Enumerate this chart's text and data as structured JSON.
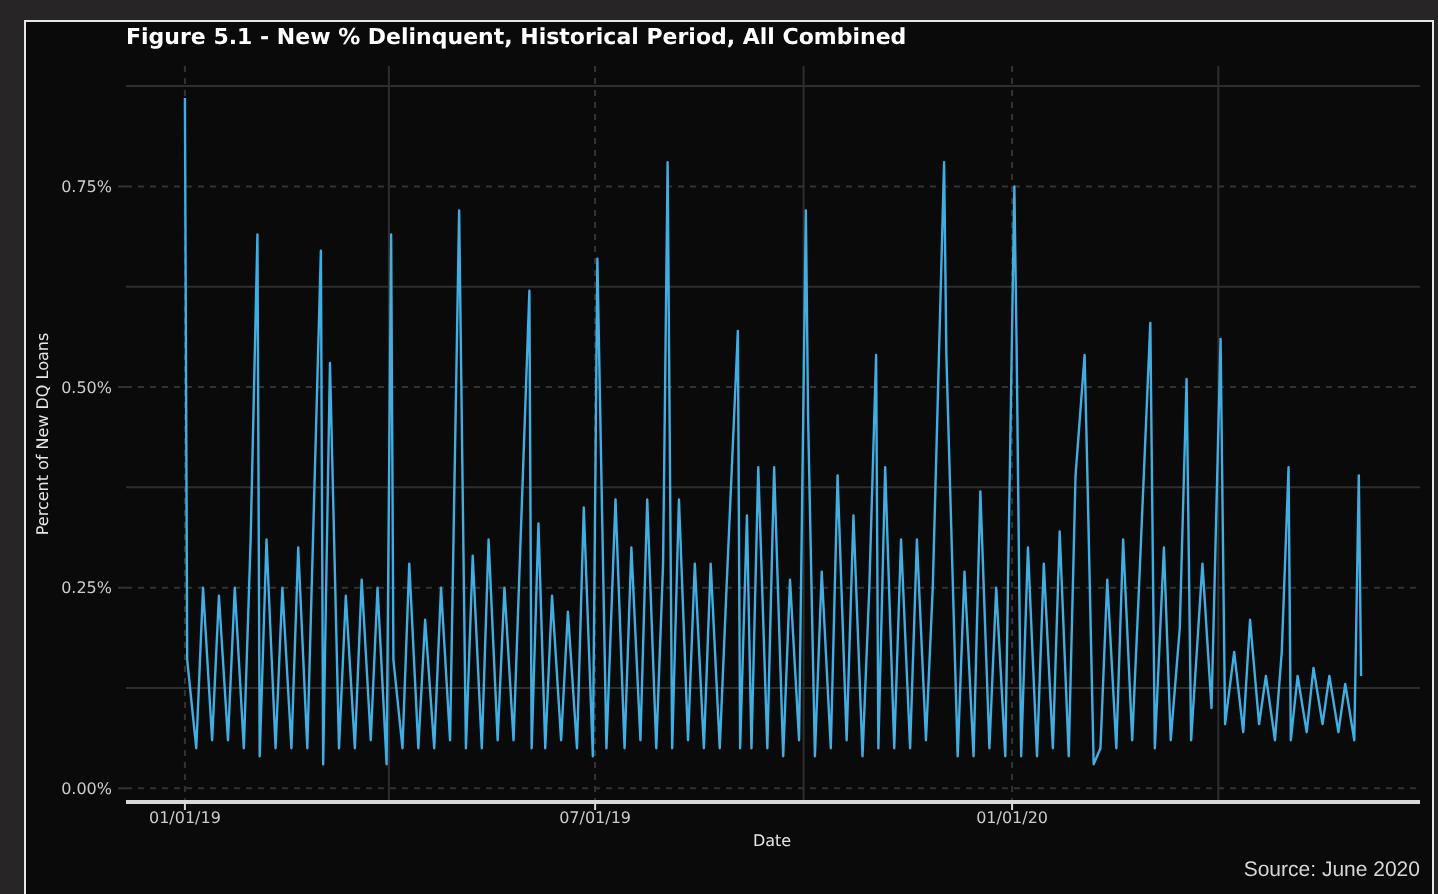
{
  "chart_data": {
    "type": "line",
    "title": "Figure 5.1 - New % Delinquent, Historical Period, All Combined",
    "xlabel": "Date",
    "ylabel": "Percent of New DQ Loans",
    "annotations": [
      "Source: June 2020"
    ],
    "x": [
      "2019-01-01",
      "2019-01-02",
      "2019-01-06",
      "2019-01-09",
      "2019-01-13",
      "2019-01-16",
      "2019-01-20",
      "2019-01-23",
      "2019-01-27",
      "2019-01-30",
      "2019-02-02",
      "2019-02-03",
      "2019-02-06",
      "2019-02-10",
      "2019-02-13",
      "2019-02-17",
      "2019-02-20",
      "2019-02-24",
      "2019-03-02",
      "2019-03-03",
      "2019-03-06",
      "2019-03-10",
      "2019-03-13",
      "2019-03-17",
      "2019-03-20",
      "2019-03-24",
      "2019-03-27",
      "2019-03-31",
      "2019-04-02",
      "2019-04-03",
      "2019-04-07",
      "2019-04-10",
      "2019-04-14",
      "2019-04-17",
      "2019-04-21",
      "2019-04-24",
      "2019-04-28",
      "2019-05-02",
      "2019-05-05",
      "2019-05-08",
      "2019-05-12",
      "2019-05-15",
      "2019-05-19",
      "2019-05-22",
      "2019-05-26",
      "2019-05-29",
      "2019-06-02",
      "2019-06-03",
      "2019-06-06",
      "2019-06-09",
      "2019-06-12",
      "2019-06-16",
      "2019-06-19",
      "2019-06-23",
      "2019-06-26",
      "2019-06-30",
      "2019-07-02",
      "2019-07-06",
      "2019-07-10",
      "2019-07-14",
      "2019-07-17",
      "2019-07-21",
      "2019-07-24",
      "2019-07-28",
      "2019-07-31",
      "2019-08-02",
      "2019-08-04",
      "2019-08-07",
      "2019-08-11",
      "2019-08-14",
      "2019-08-18",
      "2019-08-21",
      "2019-08-25",
      "2019-08-28",
      "2019-09-02",
      "2019-09-03",
      "2019-09-06",
      "2019-09-08",
      "2019-09-11",
      "2019-09-15",
      "2019-09-18",
      "2019-09-22",
      "2019-09-25",
      "2019-09-29",
      "2019-10-02",
      "2019-10-03",
      "2019-10-06",
      "2019-10-09",
      "2019-10-13",
      "2019-10-16",
      "2019-10-20",
      "2019-10-23",
      "2019-10-27",
      "2019-10-30",
      "2019-11-02",
      "2019-11-03",
      "2019-11-06",
      "2019-11-10",
      "2019-11-13",
      "2019-11-17",
      "2019-11-20",
      "2019-11-24",
      "2019-11-27",
      "2019-12-02",
      "2019-12-03",
      "2019-12-08",
      "2019-12-11",
      "2019-12-15",
      "2019-12-18",
      "2019-12-22",
      "2019-12-25",
      "2019-12-29",
      "2020-01-02",
      "2020-01-03",
      "2020-01-05",
      "2020-01-08",
      "2020-01-12",
      "2020-01-15",
      "2020-01-19",
      "2020-01-22",
      "2020-01-26",
      "2020-01-29",
      "2020-02-02",
      "2020-02-03",
      "2020-02-06",
      "2020-02-09",
      "2020-02-12",
      "2020-02-16",
      "2020-02-19",
      "2020-02-23",
      "2020-02-26",
      "2020-03-02",
      "2020-03-04",
      "2020-03-08",
      "2020-03-11",
      "2020-03-15",
      "2020-03-18",
      "2020-03-20",
      "2020-03-25",
      "2020-03-29",
      "2020-04-02",
      "2020-04-04",
      "2020-04-08",
      "2020-04-12",
      "2020-04-15",
      "2020-04-19",
      "2020-04-22",
      "2020-04-26",
      "2020-04-29",
      "2020-05-02",
      "2020-05-03",
      "2020-05-06",
      "2020-05-10",
      "2020-05-13",
      "2020-05-17",
      "2020-05-20",
      "2020-05-24",
      "2020-05-27",
      "2020-05-31",
      "2020-06-02",
      "2020-06-03"
    ],
    "series": [
      {
        "color": "#41ade0",
        "values": [
          0.86,
          0.16,
          0.05,
          0.25,
          0.06,
          0.24,
          0.06,
          0.25,
          0.05,
          0.31,
          0.69,
          0.04,
          0.31,
          0.05,
          0.25,
          0.05,
          0.3,
          0.05,
          0.67,
          0.03,
          0.53,
          0.05,
          0.24,
          0.05,
          0.26,
          0.06,
          0.25,
          0.03,
          0.69,
          0.16,
          0.05,
          0.28,
          0.05,
          0.21,
          0.05,
          0.25,
          0.06,
          0.72,
          0.05,
          0.29,
          0.05,
          0.31,
          0.06,
          0.25,
          0.06,
          0.3,
          0.62,
          0.05,
          0.33,
          0.05,
          0.24,
          0.06,
          0.22,
          0.05,
          0.35,
          0.04,
          0.66,
          0.05,
          0.36,
          0.05,
          0.3,
          0.06,
          0.36,
          0.05,
          0.28,
          0.78,
          0.05,
          0.36,
          0.06,
          0.28,
          0.05,
          0.28,
          0.05,
          0.25,
          0.57,
          0.05,
          0.34,
          0.05,
          0.4,
          0.05,
          0.4,
          0.04,
          0.26,
          0.06,
          0.72,
          0.46,
          0.04,
          0.27,
          0.05,
          0.39,
          0.06,
          0.34,
          0.04,
          0.25,
          0.54,
          0.05,
          0.4,
          0.05,
          0.31,
          0.05,
          0.31,
          0.06,
          0.25,
          0.78,
          0.54,
          0.04,
          0.27,
          0.04,
          0.37,
          0.05,
          0.25,
          0.04,
          0.75,
          0.55,
          0.04,
          0.3,
          0.04,
          0.28,
          0.05,
          0.32,
          0.04,
          0.39,
          0.54,
          0.42,
          0.03,
          0.05,
          0.26,
          0.05,
          0.31,
          0.06,
          0.25,
          0.58,
          0.05,
          0.3,
          0.06,
          0.2,
          0.51,
          0.06,
          0.28,
          0.1,
          0.56,
          0.08,
          0.17,
          0.07,
          0.21,
          0.08,
          0.14,
          0.06,
          0.17,
          0.4,
          0.06,
          0.14,
          0.07,
          0.15,
          0.08,
          0.14,
          0.07,
          0.13,
          0.06,
          0.39,
          0.14
        ]
      }
    ],
    "xlim": [
      "2018-12-06",
      "2020-06-29"
    ],
    "xticks": [
      {
        "value": "2019-01-01",
        "label": "01/01/19"
      },
      {
        "value": "2019-04-01",
        "label": null
      },
      {
        "value": "2019-07-01",
        "label": "07/01/19"
      },
      {
        "value": "2019-10-01",
        "label": null
      },
      {
        "value": "2020-01-01",
        "label": "01/01/20"
      },
      {
        "value": "2020-04-01",
        "label": null
      }
    ],
    "ylim": [
      -0.017,
      0.9
    ],
    "yticks": [
      {
        "value": 0,
        "label": "0.00%"
      },
      {
        "value": 0.125,
        "label": null
      },
      {
        "value": 0.25,
        "label": "0.25%"
      },
      {
        "value": 0.375,
        "label": null
      },
      {
        "value": 0.5,
        "label": "0.50%"
      },
      {
        "value": 0.625,
        "label": null
      },
      {
        "value": 0.75,
        "label": "0.75%"
      },
      {
        "value": 0.875,
        "label": null
      }
    ],
    "grid": true,
    "line_style": "solid"
  }
}
